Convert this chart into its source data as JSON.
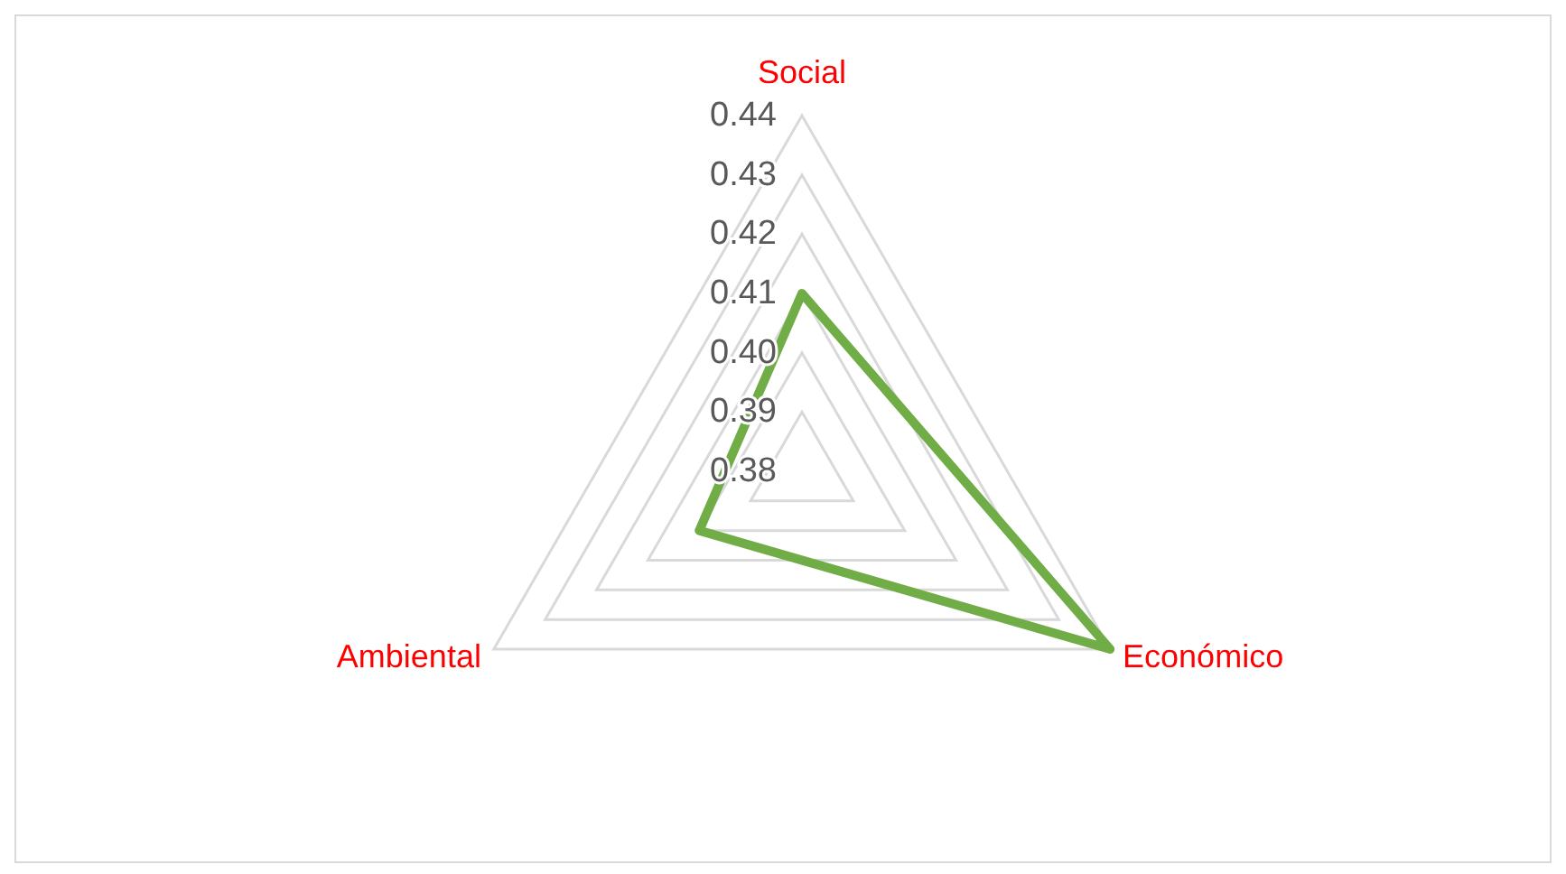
{
  "chart_data": {
    "type": "radar",
    "categories": [
      "Social",
      "Económico",
      "Ambiental"
    ],
    "series": [
      {
        "color": "#70ad47",
        "values": [
          0.41,
          0.44,
          0.4
        ]
      }
    ],
    "ylim": [
      0.38,
      0.44
    ],
    "yticks": [
      {
        "value": 0.38,
        "label": "0.38"
      },
      {
        "value": 0.39,
        "label": "0.39"
      },
      {
        "value": 0.4,
        "label": "0.40"
      },
      {
        "value": 0.41,
        "label": "0.41"
      },
      {
        "value": 0.42,
        "label": "0.42"
      },
      {
        "value": 0.43,
        "label": "0.43"
      },
      {
        "value": 0.44,
        "label": "0.44"
      }
    ],
    "grid": true,
    "marker": "none"
  }
}
